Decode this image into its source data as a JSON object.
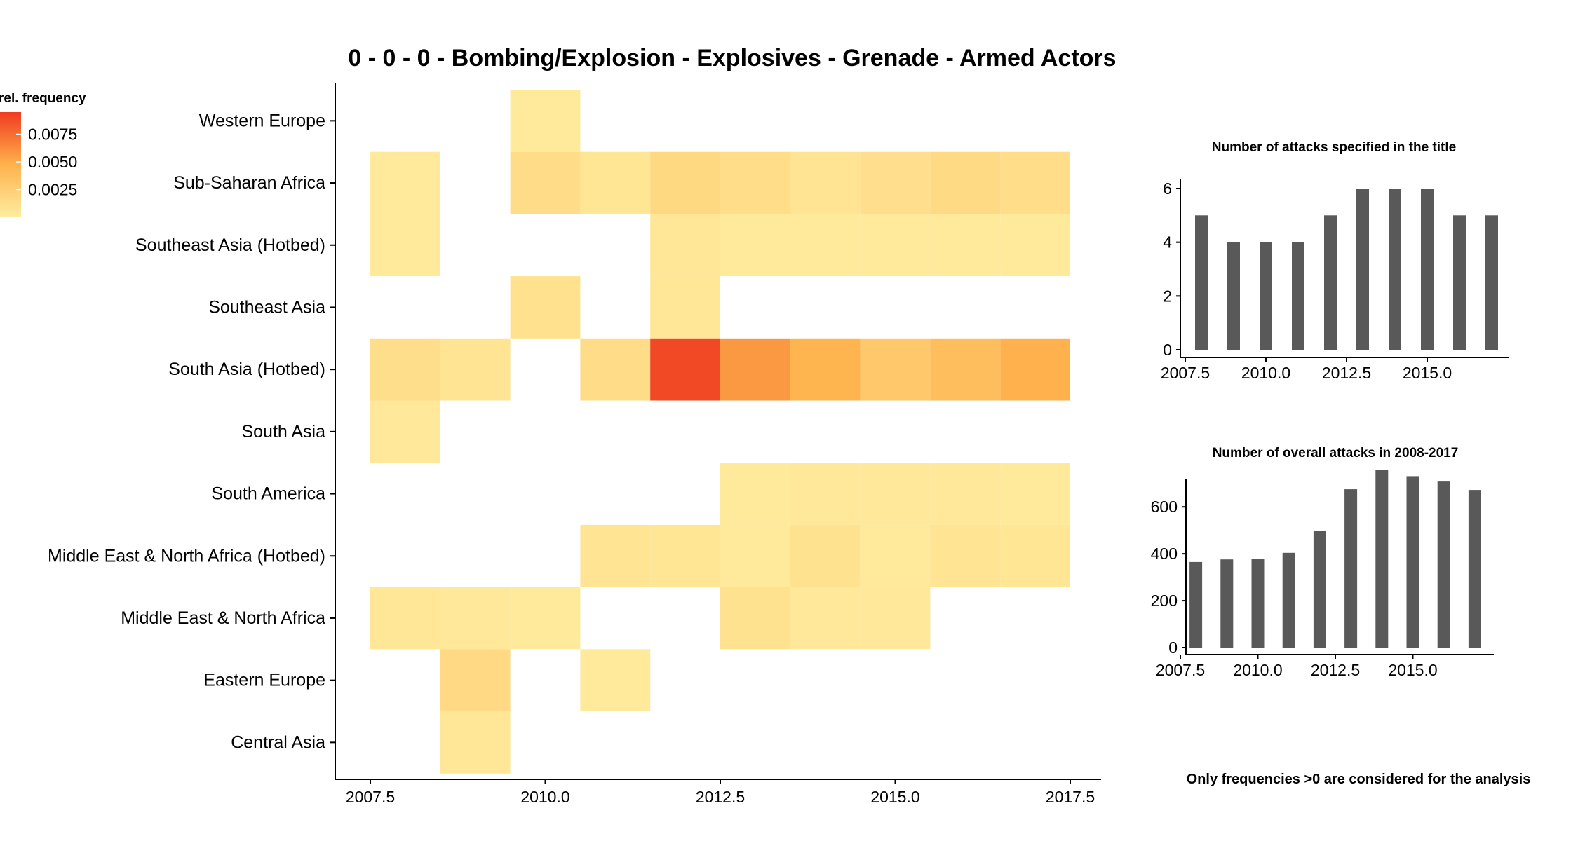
{
  "title": "0 - 0 - 0 - Bombing/Explosion - Explosives - Grenade - Armed Actors",
  "note": "Only frequencies >0 are considered for the analysis",
  "colors": {
    "low": "#ffeda0",
    "mid": "#feb24c",
    "high": "#f03b20",
    "bar": "#595959"
  },
  "chart_data": [
    {
      "type": "heatmap",
      "title": "0 - 0 - 0 - Bombing/Explosion - Explosives - Grenade - Armed Actors",
      "xlabel": "",
      "ylabel": "",
      "legend_title": "rel. frequency",
      "legend_ticks": [
        "0.0075",
        "0.0050",
        "0.0025"
      ],
      "legend_tick_values": [
        0.0075,
        0.005,
        0.0025
      ],
      "color_range": [
        0,
        0.0095
      ],
      "x": [
        2008,
        2009,
        2010,
        2011,
        2012,
        2013,
        2014,
        2015,
        2016,
        2017
      ],
      "xlim": [
        2007.5,
        2017.5
      ],
      "x_ticks": [
        "2007.5",
        "2010.0",
        "2012.5",
        "2015.0",
        "2017.5"
      ],
      "x_tick_values": [
        2007.5,
        2010,
        2012.5,
        2015,
        2017.5
      ],
      "categories": [
        "Western Europe",
        "Sub-Saharan Africa",
        "Southeast Asia (Hotbed)",
        "Southeast Asia",
        "South Asia (Hotbed)",
        "South Asia",
        "South America",
        "Middle East & North Africa (Hotbed)",
        "Middle East & North Africa",
        "Eastern Europe",
        "Central Asia"
      ],
      "values": [
        [
          null,
          null,
          0.0003,
          null,
          null,
          null,
          null,
          null,
          null,
          null
        ],
        [
          0.0003,
          null,
          0.0014,
          0.0006,
          0.0017,
          0.0013,
          0.0007,
          0.0011,
          0.0015,
          0.0013
        ],
        [
          0.0003,
          null,
          null,
          null,
          0.0005,
          0.0003,
          0.0003,
          0.0003,
          0.0003,
          0.0003
        ],
        [
          null,
          null,
          0.001,
          null,
          0.0005,
          null,
          null,
          null,
          null,
          null
        ],
        [
          0.0012,
          0.0007,
          null,
          0.0014,
          0.009,
          0.0058,
          0.0045,
          0.003,
          0.0038,
          0.0048
        ],
        [
          0.0004,
          null,
          null,
          null,
          null,
          null,
          null,
          null,
          null,
          null
        ],
        [
          null,
          null,
          null,
          null,
          null,
          0.0003,
          0.0004,
          0.0004,
          0.0004,
          0.0003
        ],
        [
          null,
          null,
          null,
          0.0007,
          0.0006,
          0.0003,
          0.0009,
          0.0003,
          0.0007,
          0.0006
        ],
        [
          0.0005,
          0.0004,
          0.0003,
          null,
          null,
          0.0009,
          0.0004,
          0.0004,
          null,
          null
        ],
        [
          null,
          0.0016,
          null,
          0.0003,
          null,
          null,
          null,
          null,
          null,
          null
        ],
        [
          null,
          0.0005,
          null,
          null,
          null,
          null,
          null,
          null,
          null,
          null
        ]
      ]
    },
    {
      "type": "bar",
      "title": "Number of attacks specified in the title",
      "x": [
        2008,
        2009,
        2010,
        2011,
        2012,
        2013,
        2014,
        2015,
        2016,
        2017
      ],
      "values": [
        5,
        4,
        4,
        4,
        5,
        6,
        6,
        6,
        5,
        5
      ],
      "xlim": [
        2007.5,
        2017.5
      ],
      "ylim": [
        0,
        6
      ],
      "x_ticks": [
        "2007.5",
        "2010.0",
        "2012.5",
        "2015.0"
      ],
      "x_tick_values": [
        2007.5,
        2010,
        2012.5,
        2015
      ],
      "y_ticks": [
        "0",
        "2",
        "4",
        "6"
      ],
      "y_tick_values": [
        0,
        2,
        4,
        6
      ]
    },
    {
      "type": "bar",
      "title": "Number of overall attacks in 2008-2017",
      "x": [
        2008,
        2009,
        2010,
        2011,
        2012,
        2013,
        2014,
        2015,
        2016,
        2017
      ],
      "values": [
        365,
        376,
        379,
        404,
        496,
        675,
        757,
        731,
        708,
        672
      ],
      "xlim": [
        2007.5,
        2017.5
      ],
      "ylim": [
        0,
        780
      ],
      "x_ticks": [
        "2007.5",
        "2010.0",
        "2012.5",
        "2015.0"
      ],
      "x_tick_values": [
        2007.5,
        2010,
        2012.5,
        2015
      ],
      "y_ticks": [
        "0",
        "200",
        "400",
        "600"
      ],
      "y_tick_values": [
        0,
        200,
        400,
        600
      ]
    }
  ]
}
